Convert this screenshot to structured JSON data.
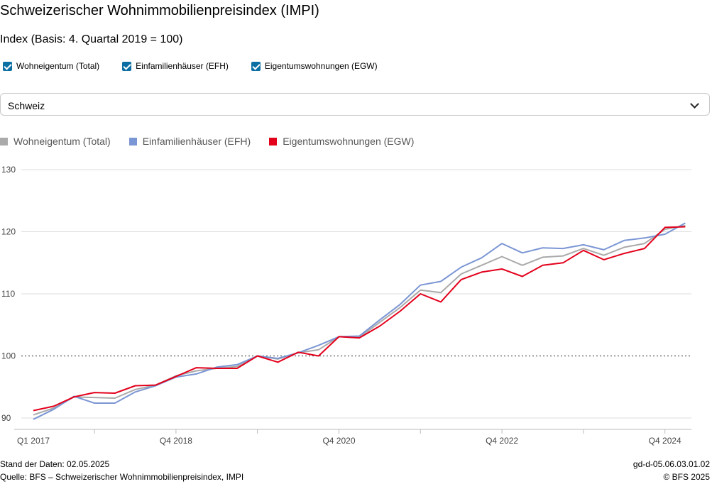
{
  "title": "Schweizerischer Wohnimmobilienpreisindex (IMPI)",
  "subtitle": "Index (Basis: 4. Quartal 2019 = 100)",
  "checkboxes": [
    {
      "label": "Wohneigentum (Total)",
      "checked": true
    },
    {
      "label": "Einfamilienhäuser (EFH)",
      "checked": true
    },
    {
      "label": "Eigentumswohnungen (EGW)",
      "checked": true
    }
  ],
  "region_select": {
    "value": "Schweiz"
  },
  "colors": {
    "total": "#aaaaaa",
    "efh": "#7b96d4",
    "egw": "#e3001b",
    "grid": "#dddddd",
    "box": "#0b6fa3"
  },
  "chart_data": {
    "type": "line",
    "y_range": [
      89,
      131
    ],
    "y_ticks": [
      "90",
      "100",
      "110",
      "120",
      "130"
    ],
    "reference_line": 100,
    "x_tick_labels": [
      {
        "index": 0,
        "label": "Q1 2017"
      },
      {
        "index": 7,
        "label": "Q4 2018"
      },
      {
        "index": 15,
        "label": "Q4 2020"
      },
      {
        "index": 23,
        "label": "Q4 2022"
      },
      {
        "index": 31,
        "label": "Q4 2024"
      }
    ],
    "series": [
      {
        "name": "Wohneigentum (Total)",
        "key": "total",
        "values": [
          90.5,
          91.6,
          93.4,
          93.3,
          93.2,
          94.6,
          95.3,
          96.8,
          97.6,
          98.0,
          98.3,
          100.0,
          99.5,
          100.5,
          101.0,
          103.1,
          103.0,
          105.4,
          107.8,
          110.6,
          110.2,
          113.2,
          114.6,
          116.0,
          114.6,
          115.9,
          116.1,
          117.3,
          116.2,
          117.5,
          118.1,
          120.4,
          121.0
        ]
      },
      {
        "name": "Einfamilienhäuser (EFH)",
        "key": "efh",
        "values": [
          89.8,
          91.4,
          93.5,
          92.4,
          92.4,
          94.2,
          95.2,
          96.6,
          97.1,
          98.2,
          98.6,
          100.0,
          99.6,
          100.5,
          101.7,
          103.1,
          103.2,
          105.8,
          108.3,
          111.4,
          112.0,
          114.3,
          115.8,
          118.1,
          116.6,
          117.4,
          117.3,
          117.9,
          117.1,
          118.6,
          119.0,
          119.6,
          121.4
        ]
      },
      {
        "name": "Eigentumswohnungen (EGW)",
        "key": "egw",
        "values": [
          91.2,
          91.9,
          93.4,
          94.1,
          94.0,
          95.2,
          95.3,
          96.7,
          98.1,
          98.0,
          98.0,
          100.0,
          99.0,
          100.6,
          100.0,
          103.1,
          102.9,
          104.8,
          107.2,
          110.0,
          108.7,
          112.3,
          113.5,
          114.0,
          112.8,
          114.6,
          115.0,
          117.0,
          115.5,
          116.5,
          117.3,
          120.7,
          120.8
        ]
      }
    ]
  },
  "footer": {
    "stand": "Stand der Daten: 02.05.2025",
    "quelle": "Quelle: BFS – Schweizerischer Wohnimmobilienpreisindex, IMPI",
    "code": "gd-d-05.06.03.01.02",
    "copyright": "© BFS 2025"
  }
}
